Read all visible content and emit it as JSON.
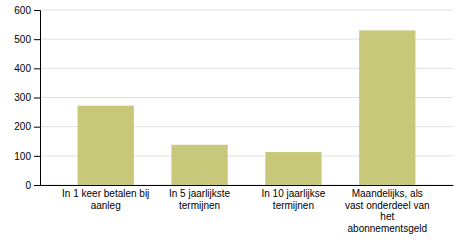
{
  "chart_data": {
    "type": "bar",
    "categories": [
      "In 1 keer betalen bij\naanleg",
      "In 5 jaarlijkste\ntermijnen",
      "In 10 jaarlijkse\ntermijnen",
      "Maandelijks, als\nvast onderdeel van\nhet\nabonnementsgeld"
    ],
    "values": [
      272,
      138,
      113,
      530
    ],
    "color": "#C8C87A",
    "ylim": [
      0,
      600
    ],
    "yticks": [
      0,
      100,
      200,
      300,
      400,
      500,
      600
    ],
    "grid": true
  }
}
